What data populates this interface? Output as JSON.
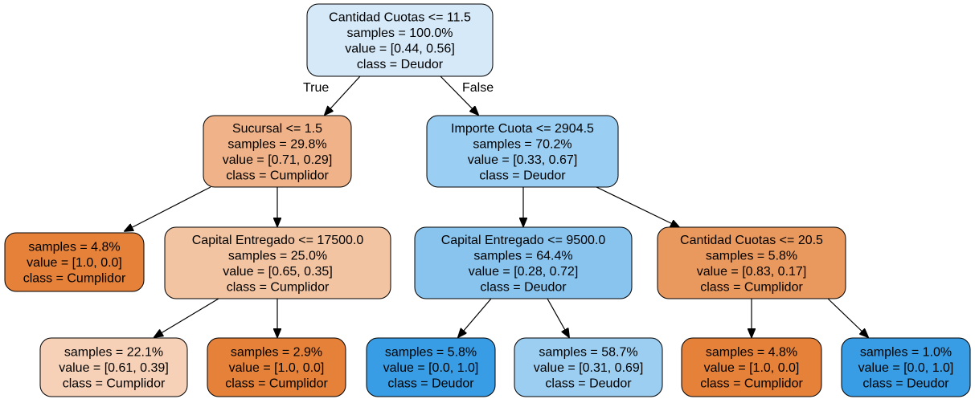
{
  "tree": {
    "edge_labels": {
      "true_label": "True",
      "false_label": "False"
    },
    "nodes": {
      "root": {
        "fill": "#d6e9f8",
        "lines": [
          "Cantidad Cuotas <= 11.5",
          "samples = 100.0%",
          "value = [0.44, 0.56]",
          "class = Deudor"
        ]
      },
      "n_sucursal": {
        "fill": "#f0b389",
        "lines": [
          "Sucursal <= 1.5",
          "samples = 29.8%",
          "value = [0.71, 0.29]",
          "class = Cumplidor"
        ]
      },
      "n_importe": {
        "fill": "#9bcef3",
        "lines": [
          "Importe Cuota <= 2904.5",
          "samples = 70.2%",
          "value = [0.33, 0.67]",
          "class = Deudor"
        ]
      },
      "leaf_a": {
        "fill": "#e58139",
        "lines": [
          "samples = 4.8%",
          "value = [1.0, 0.0]",
          "class = Cumplidor"
        ]
      },
      "n_capital_a": {
        "fill": "#f3c4a2",
        "lines": [
          "Capital Entregado  <= 17500.0",
          "samples = 25.0%",
          "value = [0.65, 0.35]",
          "class = Cumplidor"
        ]
      },
      "n_capital_b": {
        "fill": "#89c4ef",
        "lines": [
          "Capital Entregado  <= 9500.0",
          "samples = 64.4%",
          "value = [0.28, 0.72]",
          "class = Deudor"
        ]
      },
      "n_cantidad_b": {
        "fill": "#ea995e",
        "lines": [
          "Cantidad Cuotas <= 20.5",
          "samples = 5.8%",
          "value = [0.83, 0.17]",
          "class = Cumplidor"
        ]
      },
      "leaf_b": {
        "fill": "#f6d1b7",
        "lines": [
          "samples = 22.1%",
          "value = [0.61, 0.39]",
          "class = Cumplidor"
        ]
      },
      "leaf_c": {
        "fill": "#e58139",
        "lines": [
          "samples = 2.9%",
          "value = [1.0, 0.0]",
          "class = Cumplidor"
        ]
      },
      "leaf_d": {
        "fill": "#399de5",
        "lines": [
          "samples = 5.8%",
          "value = [0.0, 1.0]",
          "class = Deudor"
        ]
      },
      "leaf_e": {
        "fill": "#9ccef2",
        "lines": [
          "samples = 58.7%",
          "value = [0.31, 0.69]",
          "class = Deudor"
        ]
      },
      "leaf_f": {
        "fill": "#e58139",
        "lines": [
          "samples = 4.8%",
          "value = [1.0, 0.0]",
          "class = Cumplidor"
        ]
      },
      "leaf_g": {
        "fill": "#399de5",
        "lines": [
          "samples = 1.0%",
          "value = [0.0, 1.0]",
          "class = Deudor"
        ]
      }
    }
  }
}
